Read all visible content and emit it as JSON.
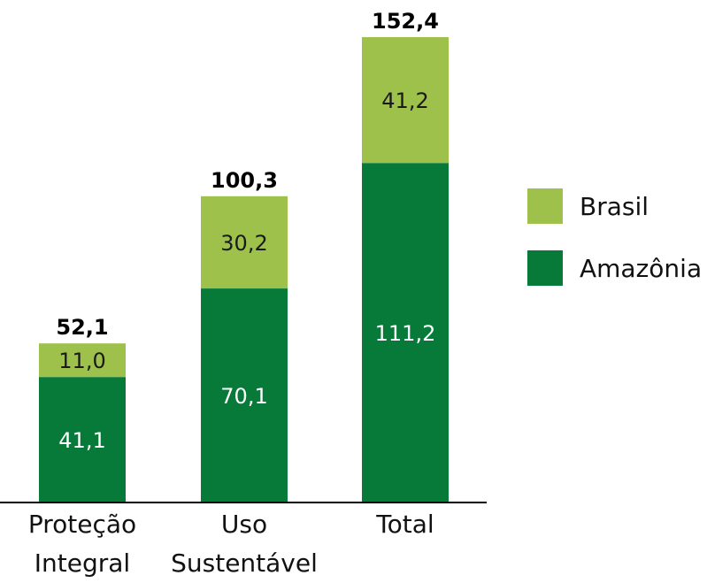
{
  "chart_data": {
    "type": "bar",
    "stacked": true,
    "categories": [
      [
        "Proteção",
        "Integral"
      ],
      [
        "Uso",
        "Sustentável"
      ],
      [
        "Total"
      ]
    ],
    "series": [
      {
        "name": "Amazônia",
        "color": "#077a3a",
        "label_color": "#ffffff",
        "values": [
          41.1,
          70.1,
          111.2
        ],
        "value_labels": [
          "41,1",
          "70,1",
          "111,2"
        ]
      },
      {
        "name": "Brasil",
        "color": "#9dc14b",
        "label_color": "#1a1a1a",
        "values": [
          11.0,
          30.2,
          41.2
        ],
        "value_labels": [
          "11,0",
          "30,2",
          "41,2"
        ]
      }
    ],
    "totals": [
      52.1,
      100.3,
      152.4
    ],
    "total_labels": [
      "52,1",
      "100,3",
      "152,4"
    ],
    "ylim": [
      0,
      160
    ],
    "grid": false,
    "legend": {
      "position": "right",
      "order": [
        "Brasil",
        "Amazônia"
      ]
    }
  }
}
